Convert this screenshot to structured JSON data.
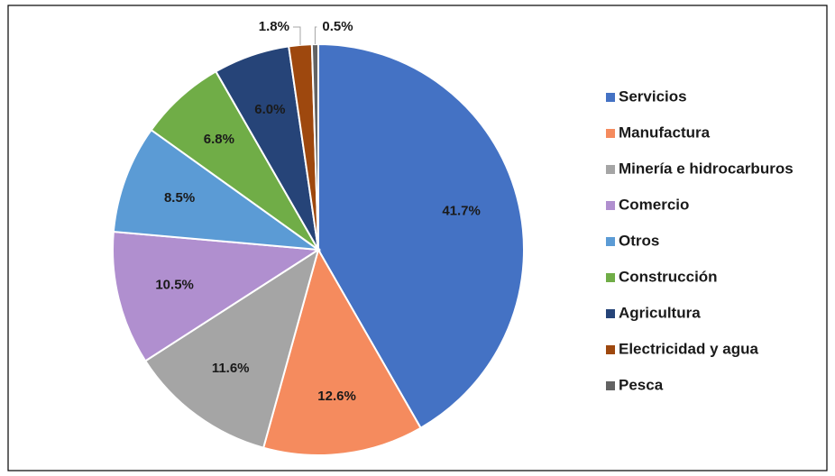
{
  "chart_data": {
    "type": "pie",
    "categories": [
      "Servicios",
      "Manufactura",
      "Minería e hidrocarburos",
      "Comercio",
      "Otros",
      "Construcción",
      "Agricultura",
      "Electricidad y agua",
      "Pesca"
    ],
    "values": [
      41.7,
      12.6,
      11.6,
      10.5,
      8.5,
      6.8,
      6,
      1.8,
      0.5
    ],
    "value_labels": [
      "41.7%",
      "12.6%",
      "11.6%",
      "10.5%",
      "8.5%",
      "6.8%",
      "6.0%",
      "1.8%",
      "0.5%"
    ],
    "colors": [
      "#4472c4",
      "#f58b5e",
      "#a5a5a5",
      "#b08fcf",
      "#5b9bd5",
      "#70ad47",
      "#264478",
      "#9e480e",
      "#636363"
    ],
    "legend": "right"
  }
}
